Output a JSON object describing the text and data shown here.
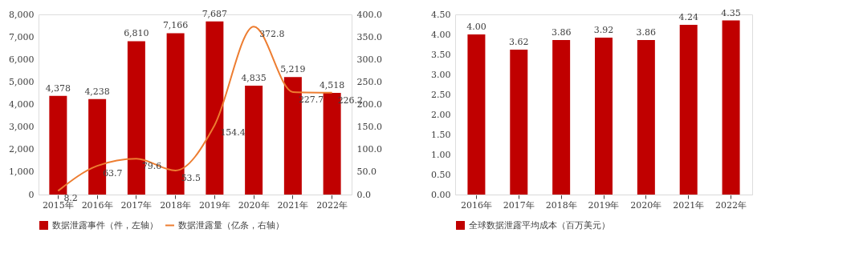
{
  "chart_data": [
    {
      "type": "bar",
      "categories": [
        "2015年",
        "2016年",
        "2017年",
        "2018年",
        "2019年",
        "2020年",
        "2021年",
        "2022年"
      ],
      "series": [
        {
          "name": "数据泄露事件（件，左轴）",
          "color": "#c00000",
          "values": [
            4378,
            4238,
            6810,
            7166,
            7687,
            4835,
            5219,
            4518
          ],
          "value_labels": [
            "4,378",
            "4,238",
            "6,810",
            "7,166",
            "7,687",
            "4,835",
            "5,219",
            "4,518"
          ]
        },
        {
          "name": "数据泄露量（亿条，右轴）",
          "type": "line",
          "axis": "y2",
          "color": "#ed7d31",
          "values": [
            8.2,
            63.7,
            79.6,
            53.5,
            154.4,
            372.8,
            227.7,
            226.2
          ],
          "value_labels": [
            "8.2",
            "63.7",
            "79.6",
            "53.5",
            "154.4",
            "372.8",
            "227.7",
            "226.2"
          ]
        }
      ],
      "ylim": [
        0,
        8000
      ],
      "yticks": [
        {
          "value": 0,
          "label": "0"
        },
        {
          "value": 1000,
          "label": "1,000"
        },
        {
          "value": 2000,
          "label": "2,000"
        },
        {
          "value": 3000,
          "label": "3,000"
        },
        {
          "value": 4000,
          "label": "4,000"
        },
        {
          "value": 5000,
          "label": "5,000"
        },
        {
          "value": 6000,
          "label": "6,000"
        },
        {
          "value": 7000,
          "label": "7,000"
        },
        {
          "value": 8000,
          "label": "8,000"
        }
      ],
      "y2lim": [
        0,
        400
      ],
      "y2ticks": [
        {
          "value": 0,
          "label": "0.0"
        },
        {
          "value": 50,
          "label": "50.0"
        },
        {
          "value": 100,
          "label": "100.0"
        },
        {
          "value": 150,
          "label": "150.0"
        },
        {
          "value": 200,
          "label": "200.0"
        },
        {
          "value": 250,
          "label": "250.0"
        },
        {
          "value": 300,
          "label": "300.0"
        },
        {
          "value": 350,
          "label": "350.0"
        },
        {
          "value": 400,
          "label": "400.0"
        }
      ],
      "grid": false,
      "legend": "bottom"
    },
    {
      "type": "bar",
      "categories": [
        "2016年",
        "2017年",
        "2018年",
        "2019年",
        "2020年",
        "2021年",
        "2022年"
      ],
      "series": [
        {
          "name": "全球数据泄露平均成本（百万美元）",
          "color": "#c00000",
          "values": [
            4.0,
            3.62,
            3.86,
            3.92,
            3.86,
            4.24,
            4.35
          ],
          "value_labels": [
            "4.00",
            "3.62",
            "3.86",
            "3.92",
            "3.86",
            "4.24",
            "4.35"
          ]
        }
      ],
      "ylim": [
        0,
        4.5
      ],
      "yticks": [
        {
          "value": 0,
          "label": "0.00"
        },
        {
          "value": 0.5,
          "label": "0.50"
        },
        {
          "value": 1,
          "label": "1.00"
        },
        {
          "value": 1.5,
          "label": "1.50"
        },
        {
          "value": 2,
          "label": "2.00"
        },
        {
          "value": 2.5,
          "label": "2.50"
        },
        {
          "value": 3,
          "label": "3.00"
        },
        {
          "value": 3.5,
          "label": "3.50"
        },
        {
          "value": 4,
          "label": "4.00"
        },
        {
          "value": 4.5,
          "label": "4.50"
        }
      ],
      "grid": false,
      "legend": "bottom"
    }
  ]
}
